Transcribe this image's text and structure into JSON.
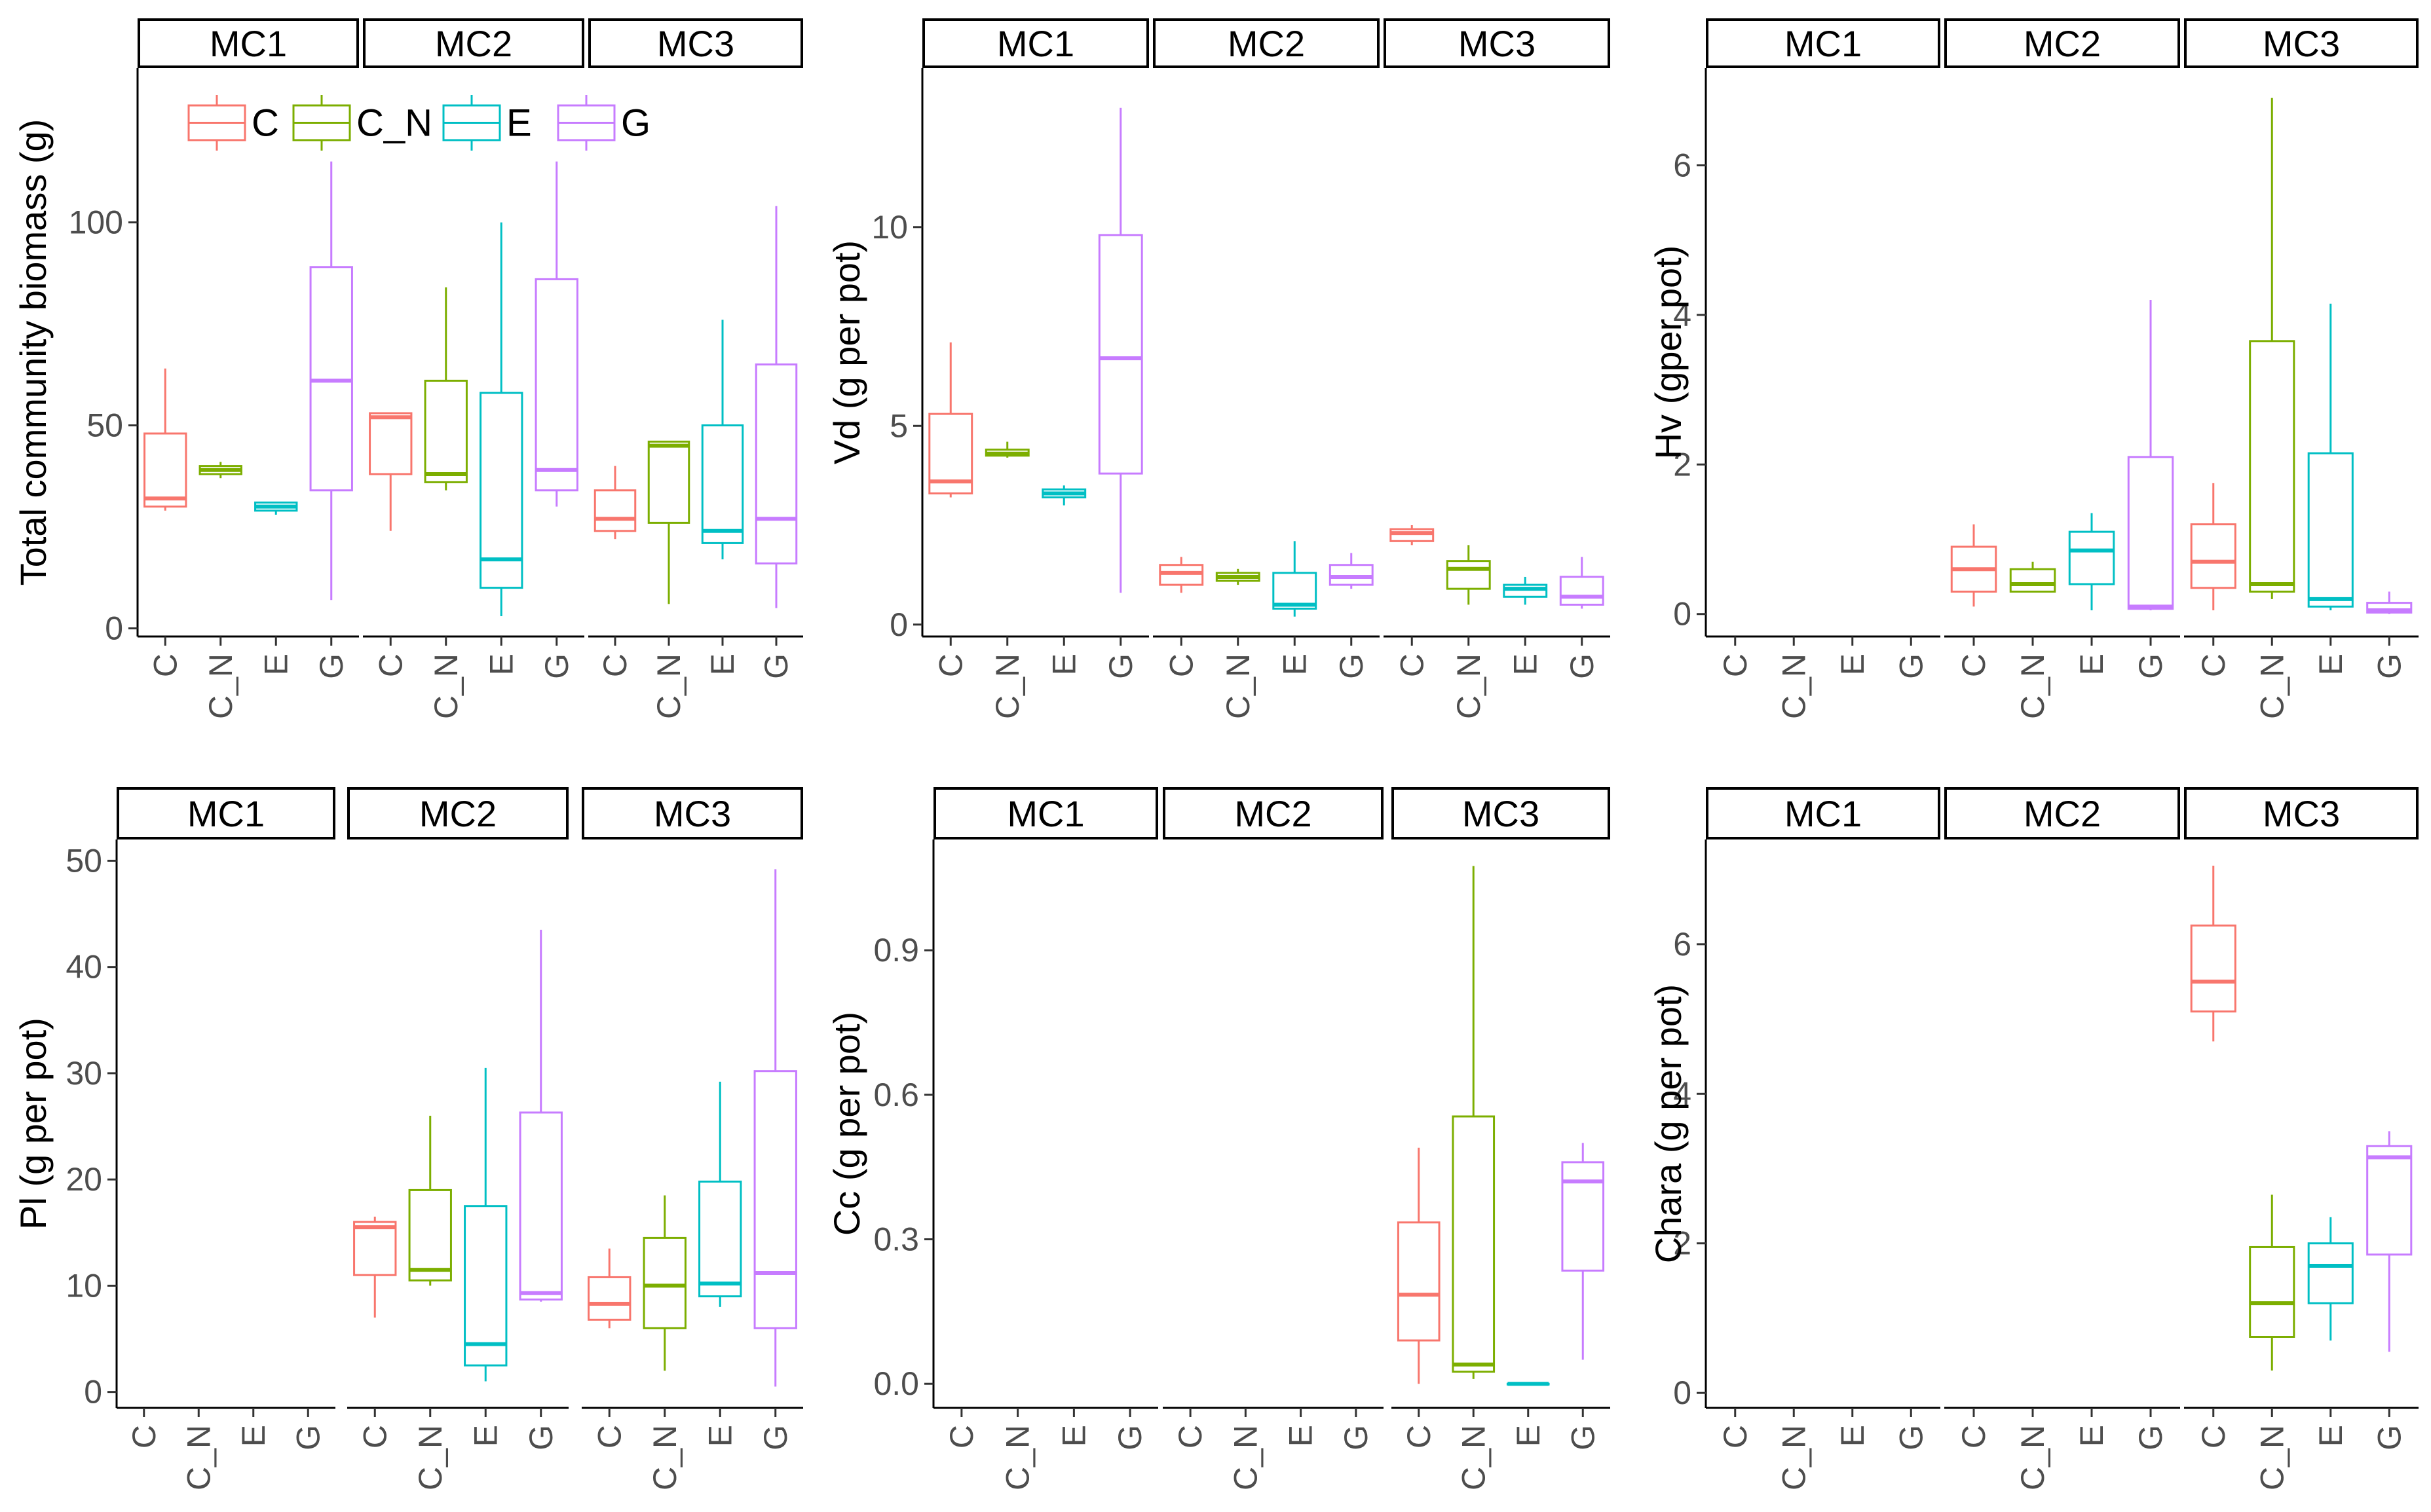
{
  "legend": {
    "entries": [
      {
        "label": "C",
        "color": "#F8766D"
      },
      {
        "label": "C_N",
        "color": "#7CAE00"
      },
      {
        "label": "E",
        "color": "#00BFC4"
      },
      {
        "label": "G",
        "color": "#C77CFF"
      }
    ]
  },
  "chart_data": [
    {
      "type": "boxplot",
      "title": "",
      "ylabel": "Total community biomass (g)",
      "ylim": [
        -2,
        138
      ],
      "yticks": [
        0,
        50,
        100
      ],
      "facets": [
        "MC1",
        "MC2",
        "MC3"
      ],
      "categories": [
        "C",
        "C_N",
        "E",
        "G"
      ],
      "boxes": {
        "MC1": [
          [
            29,
            30,
            32,
            48,
            64
          ],
          [
            37,
            38,
            39,
            40,
            41
          ],
          [
            28,
            29,
            30,
            31,
            31
          ],
          [
            7,
            34,
            61,
            89,
            115
          ]
        ],
        "MC2": [
          [
            24,
            38,
            52,
            53,
            53
          ],
          [
            34,
            36,
            38,
            61,
            84
          ],
          [
            3,
            10,
            17,
            58,
            100
          ],
          [
            30,
            34,
            39,
            86,
            115
          ]
        ],
        "MC3": [
          [
            22,
            24,
            27,
            34,
            40
          ],
          [
            6,
            26,
            45,
            46,
            46
          ],
          [
            17,
            21,
            24,
            50,
            76
          ],
          [
            5,
            16,
            27,
            65,
            104
          ]
        ]
      }
    },
    {
      "type": "boxplot",
      "title": "",
      "ylabel": "Vd (g per pot)",
      "ylim": [
        -0.3,
        14.0
      ],
      "yticks": [
        0,
        5,
        10
      ],
      "facets": [
        "MC1",
        "MC2",
        "MC3"
      ],
      "categories": [
        "C",
        "C_N",
        "E",
        "G"
      ],
      "boxes": {
        "MC1": [
          [
            3.2,
            3.3,
            3.6,
            5.3,
            7.1
          ],
          [
            4.2,
            4.25,
            4.3,
            4.4,
            4.6
          ],
          [
            3.0,
            3.2,
            3.3,
            3.4,
            3.5
          ],
          [
            0.8,
            3.8,
            6.7,
            9.8,
            13.0
          ]
        ],
        "MC2": [
          [
            0.8,
            1.0,
            1.3,
            1.5,
            1.7
          ],
          [
            1.0,
            1.1,
            1.2,
            1.3,
            1.4
          ],
          [
            0.2,
            0.4,
            0.5,
            1.3,
            2.1
          ],
          [
            0.9,
            1.0,
            1.2,
            1.5,
            1.8
          ]
        ],
        "MC3": [
          [
            2.0,
            2.1,
            2.3,
            2.4,
            2.5
          ],
          [
            0.5,
            0.9,
            1.4,
            1.6,
            2.0
          ],
          [
            0.5,
            0.7,
            0.9,
            1.0,
            1.2
          ],
          [
            0.4,
            0.5,
            0.7,
            1.2,
            1.7
          ]
        ]
      }
    },
    {
      "type": "boxplot",
      "title": "",
      "ylabel": "Hv (gper pot)",
      "ylim": [
        -0.3,
        7.3
      ],
      "yticks": [
        0,
        2,
        4,
        6
      ],
      "facets": [
        "MC1",
        "MC2",
        "MC3"
      ],
      "categories": [
        "C",
        "C_N",
        "E",
        "G"
      ],
      "boxes": {
        "MC1": [
          null,
          null,
          null,
          null
        ],
        "MC2": [
          [
            0.1,
            0.3,
            0.6,
            0.9,
            1.2
          ],
          [
            0.3,
            0.3,
            0.4,
            0.6,
            0.7
          ],
          [
            0.05,
            0.4,
            0.85,
            1.1,
            1.35
          ],
          [
            0.05,
            0.07,
            0.1,
            2.1,
            4.2
          ]
        ],
        "MC3": [
          [
            0.05,
            0.35,
            0.7,
            1.2,
            1.75
          ],
          [
            0.2,
            0.3,
            0.4,
            3.65,
            6.9
          ],
          [
            0.05,
            0.1,
            0.2,
            2.15,
            4.15
          ],
          [
            0.0,
            0.02,
            0.05,
            0.15,
            0.3
          ]
        ]
      }
    },
    {
      "type": "boxplot",
      "title": "",
      "ylabel": "Pl (g per pot)",
      "ylim": [
        -1.5,
        52.0
      ],
      "yticks": [
        0,
        10,
        20,
        30,
        40,
        50
      ],
      "facets": [
        "MC1",
        "MC2",
        "MC3"
      ],
      "categories": [
        "C",
        "C_N",
        "E",
        "G"
      ],
      "boxes": {
        "MC1": [
          null,
          null,
          null,
          null
        ],
        "MC2": [
          [
            7,
            11,
            15.5,
            16,
            16.5
          ],
          [
            10,
            10.5,
            11.5,
            19,
            26
          ],
          [
            1,
            2.5,
            4.5,
            17.5,
            30.5
          ],
          [
            8.5,
            8.7,
            9.3,
            26.3,
            43.5
          ]
        ],
        "MC3": [
          [
            6,
            6.8,
            8.3,
            10.8,
            13.5
          ],
          [
            2,
            6,
            10,
            14.5,
            18.5
          ],
          [
            8,
            9,
            10.2,
            19.8,
            29.2
          ],
          [
            0.5,
            6,
            11.2,
            30.2,
            49.2
          ]
        ]
      }
    },
    {
      "type": "boxplot",
      "title": "",
      "ylabel": "Cc (g per pot)",
      "ylim": [
        -0.05,
        1.13
      ],
      "yticks": [
        0.0,
        0.3,
        0.6,
        0.9
      ],
      "facets": [
        "MC1",
        "MC2",
        "MC3"
      ],
      "categories": [
        "C",
        "C_N",
        "E",
        "G"
      ],
      "boxes": {
        "MC1": [
          null,
          null,
          null,
          null
        ],
        "MC2": [
          null,
          null,
          null,
          null
        ],
        "MC3": [
          [
            0.0,
            0.09,
            0.185,
            0.335,
            0.49
          ],
          [
            0.01,
            0.025,
            0.04,
            0.555,
            1.075
          ],
          [
            0.0,
            0.0,
            0.0,
            0.0,
            0.0
          ],
          [
            0.05,
            0.235,
            0.42,
            0.46,
            0.5
          ]
        ]
      }
    },
    {
      "type": "boxplot",
      "title": "",
      "ylabel": "Chara (g per pot)",
      "ylim": [
        -0.2,
        7.4
      ],
      "yticks": [
        0,
        2,
        4,
        6
      ],
      "facets": [
        "MC1",
        "MC2",
        "MC3"
      ],
      "categories": [
        "C",
        "C_N",
        "E",
        "G"
      ],
      "boxes": {
        "MC1": [
          null,
          null,
          null,
          null
        ],
        "MC2": [
          null,
          null,
          null,
          null
        ],
        "MC3": [
          [
            4.7,
            5.1,
            5.5,
            6.25,
            7.05
          ],
          [
            0.3,
            0.75,
            1.2,
            1.95,
            2.65
          ],
          [
            0.7,
            1.2,
            1.7,
            2.0,
            2.35
          ],
          [
            0.55,
            1.85,
            3.15,
            3.3,
            3.5
          ]
        ]
      }
    }
  ]
}
